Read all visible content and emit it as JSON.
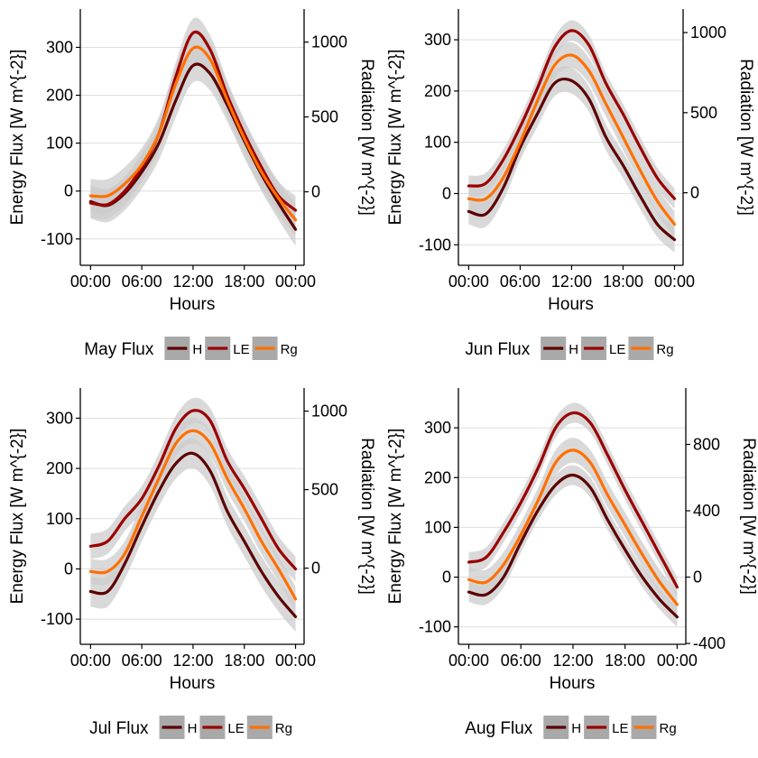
{
  "figure": {
    "colors": {
      "H": "#5c0000",
      "LE": "#9b0000",
      "Rg": "#ff7000",
      "band": "#cccccc",
      "legend_key_bg": "#a9a9a9",
      "grid": "#dddddd"
    }
  },
  "chart_data": [
    {
      "type": "line",
      "xlabel": "Hours",
      "ylabel": "Energy Flux [W m^{-2}]",
      "ylabel_right": "Radiation [W m^{-2}]",
      "x_ticks": [
        "00:00",
        "06:00",
        "12:00",
        "18:00",
        "00:00"
      ],
      "x_tick_hours": [
        0,
        6,
        12,
        18,
        24
      ],
      "xlim": [
        -1.2,
        25
      ],
      "ylim": [
        -155,
        380
      ],
      "y_ticks": [
        -100,
        0,
        100,
        200,
        300
      ],
      "y_ticks_right": [
        "0",
        "500",
        "1000"
      ],
      "y_ticks_right_values": [
        0,
        500,
        1000
      ],
      "y2_scale": {
        "a": 3.2,
        "b": 5
      },
      "legend": {
        "title": "May Flux",
        "position": "bottom",
        "labels": [
          "H",
          "LE",
          "Rg"
        ]
      },
      "x": [
        0,
        2,
        4,
        6,
        8,
        10,
        12,
        14,
        16,
        18,
        20,
        22,
        24
      ],
      "series": [
        {
          "name": "H",
          "values": [
            -22,
            -30,
            -5,
            40,
            100,
            190,
            262,
            245,
            180,
            105,
            35,
            -25,
            -80
          ],
          "band": 35
        },
        {
          "name": "LE",
          "values": [
            -25,
            -28,
            0,
            50,
            120,
            240,
            330,
            295,
            200,
            120,
            50,
            -10,
            -40
          ],
          "band": 30
        },
        {
          "name": "Rg",
          "values": [
            -10,
            -10,
            15,
            55,
            120,
            225,
            298,
            275,
            190,
            110,
            40,
            -15,
            -60
          ],
          "band": 35
        }
      ]
    },
    {
      "type": "line",
      "xlabel": "Hours",
      "ylabel": "Energy Flux [W m^{-2}]",
      "ylabel_right": "Radiation [W m^{-2}]",
      "x_ticks": [
        "00:00",
        "06:00",
        "12:00",
        "18:00",
        "00:00"
      ],
      "x_tick_hours": [
        0,
        6,
        12,
        18,
        24
      ],
      "xlim": [
        -1.2,
        25
      ],
      "ylim": [
        -140,
        360
      ],
      "y_ticks": [
        -100,
        0,
        100,
        200,
        300
      ],
      "y_ticks_right": [
        "0",
        "500",
        "1000"
      ],
      "y_ticks_right_values": [
        0,
        500,
        1000
      ],
      "y2_scale": {
        "a": 3.2,
        "b": -5
      },
      "legend": {
        "title": "Jun Flux",
        "position": "bottom",
        "labels": [
          "H",
          "LE",
          "Rg"
        ]
      },
      "x": [
        0,
        2,
        4,
        6,
        8,
        10,
        12,
        14,
        16,
        18,
        20,
        22,
        24
      ],
      "series": [
        {
          "name": "H",
          "values": [
            -35,
            -40,
            10,
            90,
            155,
            215,
            220,
            185,
            110,
            55,
            -5,
            -60,
            -90
          ],
          "band": 25
        },
        {
          "name": "LE",
          "values": [
            15,
            20,
            65,
            130,
            205,
            285,
            318,
            290,
            215,
            155,
            90,
            30,
            -10
          ],
          "band": 20
        },
        {
          "name": "Rg",
          "values": [
            -10,
            -10,
            30,
            100,
            180,
            250,
            270,
            240,
            175,
            110,
            45,
            -15,
            -60
          ],
          "band": 25
        }
      ]
    },
    {
      "type": "line",
      "xlabel": "Hours",
      "ylabel": "Energy Flux [W m^{-2}]",
      "ylabel_right": "Radiation [W m^{-2}]",
      "x_ticks": [
        "00:00",
        "06:00",
        "12:00",
        "18:00",
        "00:00"
      ],
      "x_tick_hours": [
        0,
        6,
        12,
        18,
        24
      ],
      "xlim": [
        -1.2,
        25
      ],
      "ylim": [
        -150,
        360
      ],
      "y_ticks": [
        -100,
        0,
        100,
        200,
        300
      ],
      "y_ticks_right": [
        "0",
        "500",
        "1000"
      ],
      "y_ticks_right_values": [
        0,
        500,
        1000
      ],
      "y2_scale": {
        "a": 3.2,
        "b": -5
      },
      "legend": {
        "title": "Jul Flux",
        "position": "bottom",
        "labels": [
          "H",
          "LE",
          "Rg"
        ]
      },
      "x": [
        0,
        2,
        4,
        6,
        8,
        10,
        12,
        14,
        16,
        18,
        20,
        22,
        24
      ],
      "series": [
        {
          "name": "H",
          "values": [
            -45,
            -45,
            10,
            85,
            155,
            210,
            230,
            195,
            115,
            55,
            -5,
            -55,
            -95
          ],
          "band": 30
        },
        {
          "name": "LE",
          "values": [
            45,
            55,
            100,
            140,
            205,
            280,
            315,
            295,
            215,
            160,
            100,
            40,
            0
          ],
          "band": 25
        },
        {
          "name": "Rg",
          "values": [
            -5,
            -5,
            30,
            105,
            180,
            250,
            275,
            250,
            180,
            120,
            55,
            0,
            -60
          ],
          "band": 25
        }
      ]
    },
    {
      "type": "line",
      "xlabel": "Hours",
      "ylabel": "Energy Flux [W m^{-2}]",
      "ylabel_right": "Radiation [W m^{-2}]",
      "x_ticks": [
        "00:00",
        "06:00",
        "12:00",
        "18:00",
        "00:00"
      ],
      "x_tick_hours": [
        0,
        6,
        12,
        18,
        24
      ],
      "xlim": [
        -1.2,
        25
      ],
      "ylim": [
        -135,
        380
      ],
      "y_ticks": [
        -100,
        0,
        100,
        200,
        300
      ],
      "y_ticks_right": [
        "-400",
        "0",
        "400",
        "800"
      ],
      "y_ticks_right_values": [
        -400,
        0,
        400,
        800
      ],
      "y2_scale": {
        "a": 3.0,
        "b": 0
      },
      "legend": {
        "title": "Aug Flux",
        "position": "bottom",
        "labels": [
          "H",
          "LE",
          "Rg"
        ]
      },
      "x": [
        0,
        2,
        4,
        6,
        8,
        10,
        12,
        14,
        16,
        18,
        20,
        22,
        24
      ],
      "series": [
        {
          "name": "H",
          "values": [
            -30,
            -35,
            0,
            70,
            135,
            185,
            205,
            180,
            115,
            55,
            0,
            -45,
            -80
          ],
          "band": 20
        },
        {
          "name": "LE",
          "values": [
            30,
            40,
            90,
            150,
            220,
            300,
            330,
            310,
            245,
            175,
            110,
            45,
            -20
          ],
          "band": 20
        },
        {
          "name": "Rg",
          "values": [
            -5,
            -10,
            25,
            85,
            155,
            230,
            255,
            230,
            165,
            105,
            45,
            -10,
            -55
          ],
          "band": 25
        }
      ]
    }
  ]
}
